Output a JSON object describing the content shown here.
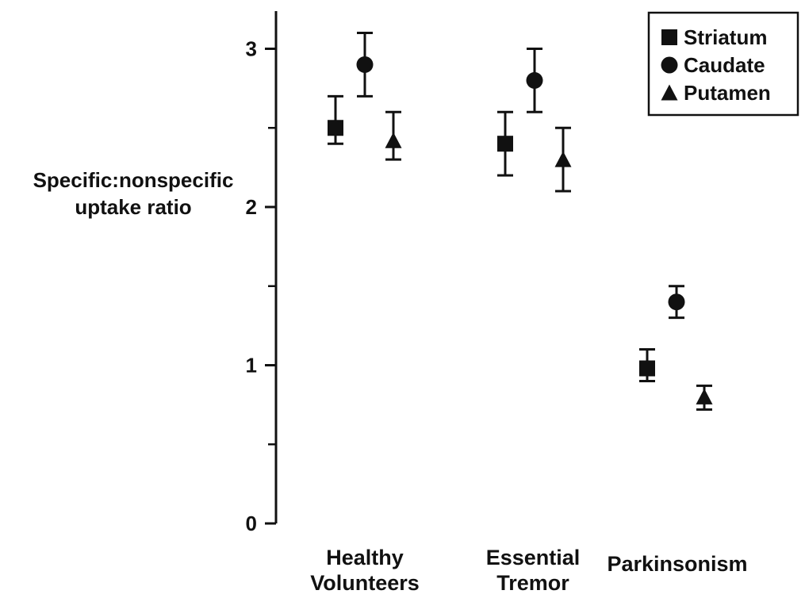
{
  "chart_data": {
    "type": "scatter",
    "title": "",
    "xlabel": "",
    "ylabel_lines": [
      "Specific:nonspecific",
      "uptake ratio"
    ],
    "ylim": [
      0,
      3.25
    ],
    "yticks_major": [
      0,
      1,
      2,
      3
    ],
    "yticks_minor": [
      0.5,
      1.5,
      2.5
    ],
    "grid": false,
    "legend": {
      "placement": "top-right",
      "boxed": true
    },
    "categories": [
      {
        "lines": [
          "Healthy",
          "Volunteers"
        ]
      },
      {
        "lines": [
          "Essential",
          "Tremor"
        ]
      },
      {
        "lines": [
          "Parkinsonism"
        ]
      }
    ],
    "series": [
      {
        "name": "Striatum",
        "marker": "square",
        "points": [
          {
            "y": 2.5,
            "low": 2.4,
            "high": 2.7
          },
          {
            "y": 2.4,
            "low": 2.2,
            "high": 2.6
          },
          {
            "y": 0.98,
            "low": 0.9,
            "high": 1.1
          }
        ]
      },
      {
        "name": "Caudate",
        "marker": "circle",
        "points": [
          {
            "y": 2.9,
            "low": 2.7,
            "high": 3.1
          },
          {
            "y": 2.8,
            "low": 2.6,
            "high": 3.0
          },
          {
            "y": 1.4,
            "low": 1.3,
            "high": 1.5
          }
        ]
      },
      {
        "name": "Putamen",
        "marker": "triangle",
        "points": [
          {
            "y": 2.42,
            "low": 2.3,
            "high": 2.6
          },
          {
            "y": 2.3,
            "low": 2.1,
            "high": 2.5
          },
          {
            "y": 0.8,
            "low": 0.72,
            "high": 0.87
          }
        ]
      }
    ],
    "colors": {
      "ink": "#111111",
      "background": "#ffffff"
    }
  }
}
